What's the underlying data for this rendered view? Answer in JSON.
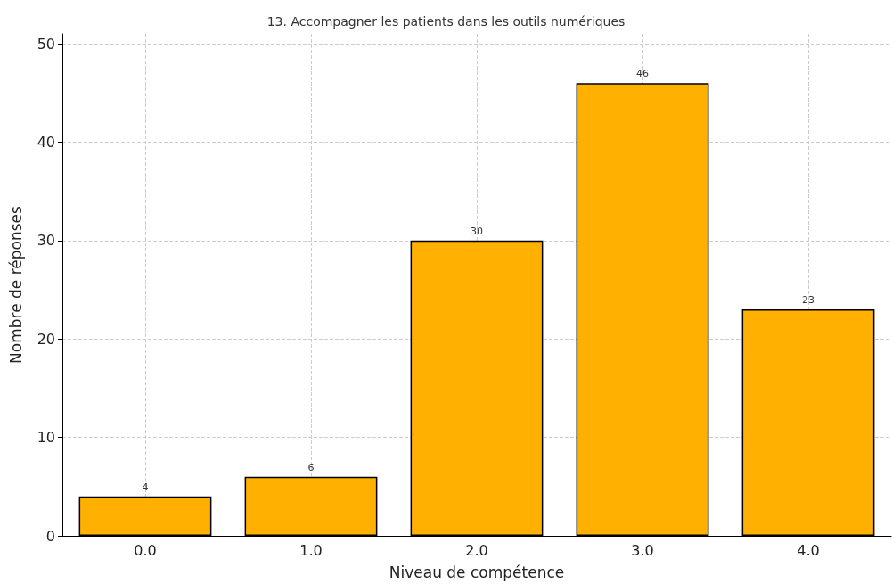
{
  "chart_data": {
    "type": "bar",
    "title": "13. Accompagner les patients dans les outils numériques",
    "xlabel": "Niveau de compétence",
    "ylabel": "Nombre de réponses",
    "categories": [
      "0.0",
      "1.0",
      "2.0",
      "3.0",
      "4.0"
    ],
    "values": [
      4,
      6,
      30,
      46,
      23
    ],
    "color": "#ffb000",
    "ylim": [
      0,
      51
    ],
    "yticks": [
      0,
      10,
      20,
      30,
      40,
      50
    ],
    "grid": true,
    "data_labels": true
  }
}
